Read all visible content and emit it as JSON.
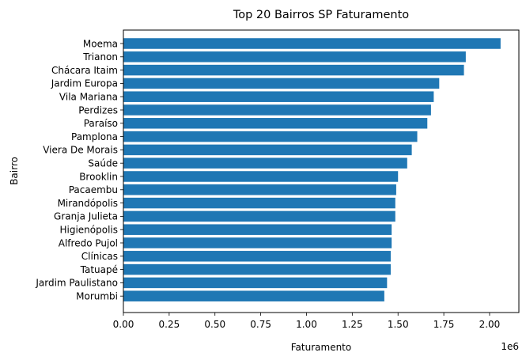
{
  "chart_data": {
    "type": "bar",
    "orientation": "horizontal",
    "title": "Top 20 Bairros SP Faturamento",
    "xlabel": "Faturamento",
    "ylabel": "Bairro",
    "x_offset_label": "1e6",
    "xlim": [
      0,
      2.16
    ],
    "x_ticks": [
      0.0,
      0.25,
      0.5,
      0.75,
      1.0,
      1.25,
      1.5,
      1.75,
      2.0
    ],
    "x_tick_labels": [
      "0.00",
      "0.25",
      "0.50",
      "0.75",
      "1.00",
      "1.25",
      "1.50",
      "1.75",
      "2.00"
    ],
    "grid": false,
    "bar_color": "#1f77b4",
    "categories": [
      "Moema",
      "Trianon",
      "Chácara Itaim",
      "Jardim Europa",
      "Vila Mariana",
      "Perdizes",
      "Paraíso",
      "Pamplona",
      "Viera De Morais",
      "Saúde",
      "Brooklin",
      "Pacaembu",
      "Mirandópolis",
      "Granja Julieta",
      "Higienópolis",
      "Alfredo Pujol",
      "Clínicas",
      "Tatuapé",
      "Jardim Paulistano",
      "Morumbi"
    ],
    "values": [
      2.06,
      1.87,
      1.86,
      1.725,
      1.695,
      1.68,
      1.66,
      1.605,
      1.575,
      1.55,
      1.5,
      1.49,
      1.485,
      1.485,
      1.465,
      1.465,
      1.46,
      1.46,
      1.44,
      1.425
    ]
  }
}
